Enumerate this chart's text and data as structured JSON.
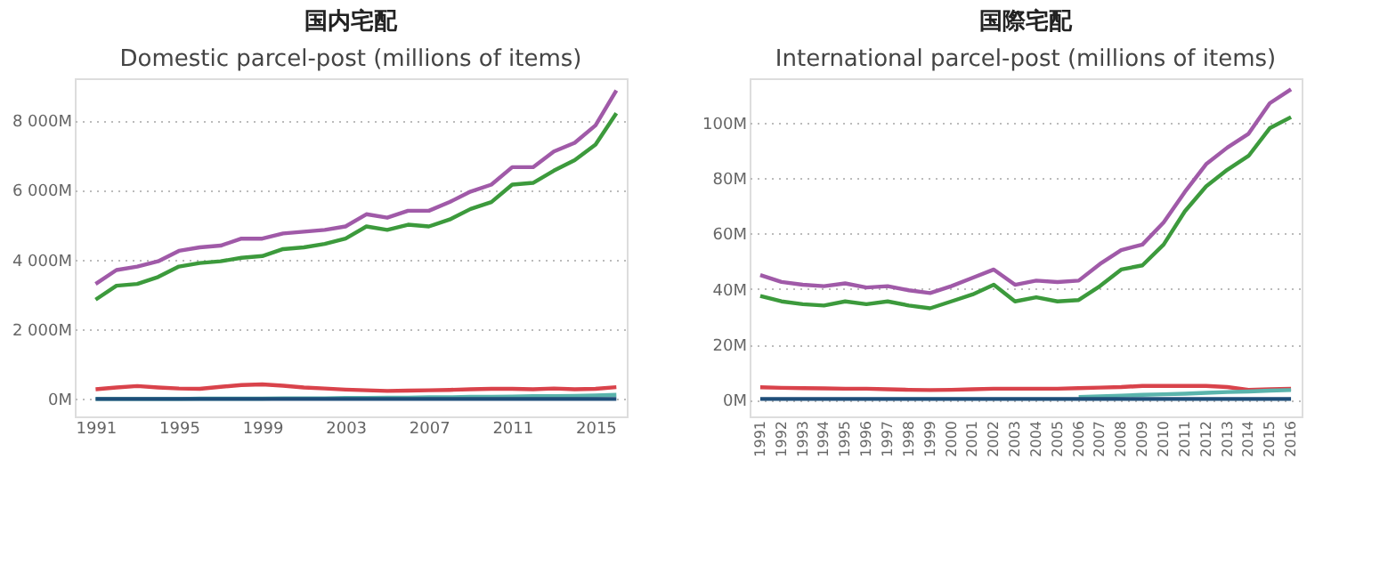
{
  "chart_data": [
    {
      "type": "line",
      "title": "国内宅配",
      "subtitle": "Domestic parcel-post (millions of items)",
      "x": [
        1991,
        1992,
        1993,
        1994,
        1995,
        1996,
        1997,
        1998,
        1999,
        2000,
        2001,
        2002,
        2003,
        2004,
        2005,
        2006,
        2007,
        2008,
        2009,
        2010,
        2011,
        2012,
        2013,
        2014,
        2015,
        2016
      ],
      "xlim": [
        1990,
        2016.5
      ],
      "xticks": [
        1991,
        1995,
        1999,
        2003,
        2007,
        2011,
        2015
      ],
      "ylim": [
        -500,
        9200
      ],
      "yticks": [
        {
          "value": 0,
          "label": "0M"
        },
        {
          "value": 2000,
          "label": "2 000M"
        },
        {
          "value": 4000,
          "label": "4 000M"
        },
        {
          "value": 6000,
          "label": "6 000M"
        },
        {
          "value": 8000,
          "label": "8 000M"
        }
      ],
      "grid": "y",
      "legend": false,
      "marker": "none",
      "line_style": "solid",
      "series": [
        {
          "color": "#a05aa8",
          "values": [
            3300,
            3700,
            3800,
            3950,
            4250,
            4350,
            4400,
            4600,
            4600,
            4750,
            4800,
            4850,
            4950,
            5300,
            5200,
            5400,
            5400,
            5650,
            5950,
            6150,
            6650,
            6650,
            7100,
            7350,
            7850,
            8850
          ]
        },
        {
          "color": "#3c9a3c",
          "values": [
            2850,
            3250,
            3300,
            3500,
            3800,
            3900,
            3950,
            4050,
            4100,
            4300,
            4350,
            4450,
            4600,
            4950,
            4850,
            5000,
            4950,
            5150,
            5450,
            5650,
            6150,
            6200,
            6550,
            6850,
            7300,
            8200
          ]
        },
        {
          "color": "#d9434b",
          "values": [
            280,
            330,
            370,
            330,
            300,
            290,
            350,
            400,
            420,
            380,
            330,
            300,
            270,
            250,
            230,
            240,
            250,
            260,
            280,
            290,
            290,
            280,
            300,
            280,
            290,
            340
          ]
        },
        {
          "color": "#5ab4ac",
          "values": [
            0,
            0,
            0,
            0,
            0,
            10,
            10,
            10,
            10,
            20,
            20,
            20,
            30,
            30,
            40,
            40,
            50,
            50,
            60,
            60,
            70,
            80,
            80,
            90,
            100,
            120
          ]
        },
        {
          "color": "#1f4e79",
          "values": [
            0,
            0,
            0,
            0,
            0,
            0,
            0,
            0,
            0,
            0,
            0,
            0,
            0,
            0,
            0,
            0,
            0,
            0,
            0,
            0,
            0,
            0,
            0,
            0,
            0,
            0
          ]
        }
      ]
    },
    {
      "type": "line",
      "title": "国際宅配",
      "subtitle": "International parcel-post (millions of items)",
      "categories": [
        "1991",
        "1992",
        "1993",
        "1994",
        "1995",
        "1996",
        "1997",
        "1998",
        "1999",
        "2000",
        "2001",
        "2002",
        "2003",
        "2004",
        "2005",
        "2006",
        "2007",
        "2008",
        "2009",
        "2010",
        "2011",
        "2012",
        "2013",
        "2014",
        "2015",
        "2016"
      ],
      "ylim": [
        -6,
        116
      ],
      "yticks": [
        {
          "value": 0,
          "label": "0M"
        },
        {
          "value": 20,
          "label": "20M"
        },
        {
          "value": 40,
          "label": "40M"
        },
        {
          "value": 60,
          "label": "60M"
        },
        {
          "value": 80,
          "label": "80M"
        },
        {
          "value": 100,
          "label": "100M"
        }
      ],
      "grid": "y",
      "legend": false,
      "marker": "none",
      "line_style": "solid",
      "series": [
        {
          "color": "#a05aa8",
          "values": [
            45,
            42.5,
            41.5,
            41,
            42,
            40.5,
            41,
            39.5,
            38.5,
            41,
            44,
            47,
            41.5,
            43,
            42.5,
            43,
            49,
            54,
            56,
            64,
            75,
            85,
            91,
            96,
            107,
            112
          ]
        },
        {
          "color": "#3c9a3c",
          "values": [
            37.5,
            35.5,
            34.5,
            34,
            35.5,
            34.5,
            35.5,
            34,
            33,
            35.5,
            38,
            41.5,
            35.5,
            37,
            35.5,
            36,
            41,
            47,
            48.5,
            56,
            68,
            77,
            83,
            88,
            98,
            102
          ]
        },
        {
          "color": "#d9434b",
          "values": [
            4.5,
            4.3,
            4.2,
            4.1,
            4,
            4,
            3.8,
            3.6,
            3.5,
            3.6,
            3.8,
            4,
            4,
            4,
            4,
            4.2,
            4.4,
            4.6,
            5,
            5,
            5,
            5,
            4.6,
            3.6,
            3.8,
            4
          ]
        },
        {
          "color": "#5ab4ac",
          "values": [
            null,
            null,
            null,
            null,
            null,
            null,
            null,
            null,
            null,
            null,
            null,
            null,
            null,
            null,
            null,
            1,
            1.2,
            1.5,
            1.8,
            2,
            2.2,
            2.5,
            2.8,
            3,
            3.3,
            3.5
          ]
        },
        {
          "color": "#1f4e79",
          "values": [
            0.3,
            0.3,
            0.3,
            0.3,
            0.3,
            0.3,
            0.3,
            0.3,
            0.3,
            0.3,
            0.3,
            0.3,
            0.3,
            0.3,
            0.3,
            0.3,
            0.3,
            0.3,
            0.3,
            0.3,
            0.3,
            0.3,
            0.3,
            0.3,
            0.3,
            0.3
          ]
        }
      ]
    }
  ]
}
